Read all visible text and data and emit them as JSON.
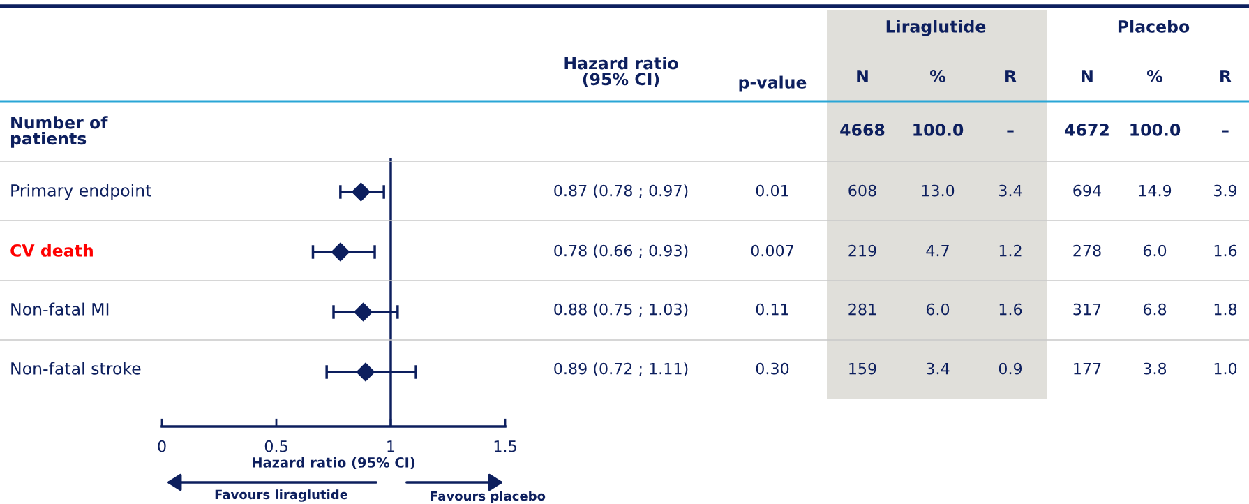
{
  "chart_data": {
    "type": "scatter",
    "orientation": "horizontal",
    "marker": "diamond",
    "categories": [
      "Primary endpoint",
      "CV death",
      "Non-fatal MI",
      "Non-fatal stroke"
    ],
    "values": [
      0.87,
      0.78,
      0.88,
      0.89
    ],
    "errors": [
      [
        0.78,
        0.97
      ],
      [
        0.66,
        0.93
      ],
      [
        0.75,
        1.03
      ],
      [
        0.72,
        1.11
      ]
    ],
    "value_labels": [
      "0.87 (0.78 ; 0.97)",
      "0.78 (0.66 ; 0.93)",
      "0.88 (0.75 ; 1.03)",
      "0.89 (0.72 ; 1.11)"
    ],
    "color": "#0d1f5e",
    "xlim": [
      0,
      1.5
    ],
    "xticks": [
      0,
      0.5,
      1,
      1.5
    ],
    "xlabel": "Hazard ratio (95% CI)",
    "ref_lines": [
      {
        "axis": "x",
        "value": 1,
        "color": "#0d1f5e"
      }
    ],
    "grid": false,
    "annotations": [
      "Liraglutide",
      "Placebo",
      "Hazard ratio\n(95% CI)",
      "p-value",
      "N",
      "%",
      "R",
      "N",
      "%",
      "R",
      "Number of\npatients",
      "4668",
      "100.0",
      "–",
      "4672",
      "100.0",
      "–",
      "0.01",
      "608",
      "13.0",
      "3.4",
      "694",
      "14.9",
      "3.9",
      "0.007",
      "219",
      "4.7",
      "1.2",
      "278",
      "6.0",
      "1.6",
      "0.11",
      "281",
      "6.0",
      "1.6",
      "317",
      "6.8",
      "1.8",
      "0.30",
      "159",
      "3.4",
      "0.9",
      "177",
      "3.8",
      "1.0",
      "Favours liraglutide",
      "Favours placebo"
    ]
  }
}
